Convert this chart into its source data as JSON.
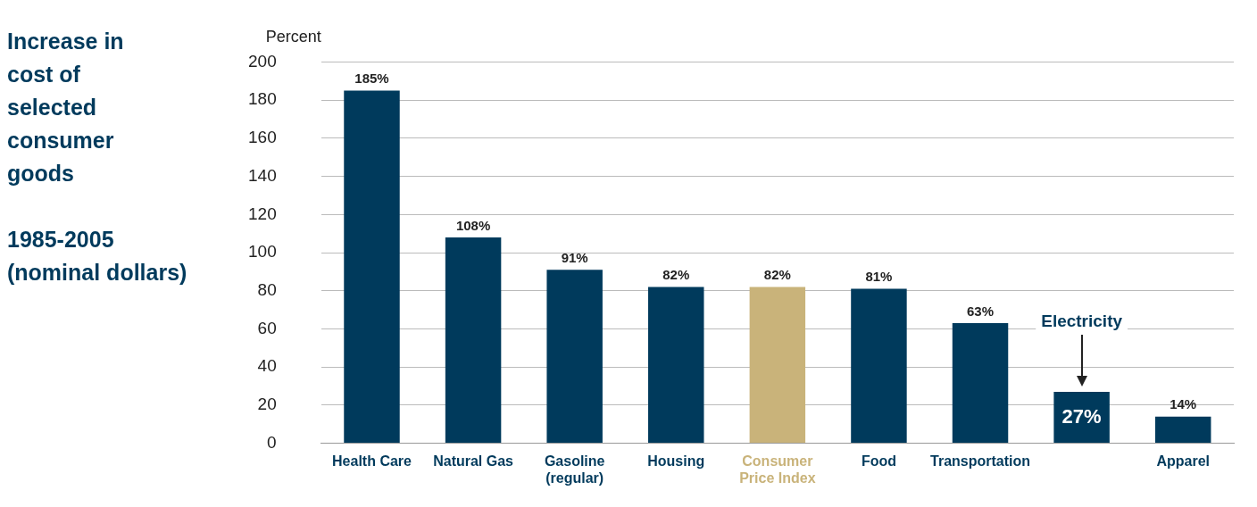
{
  "chart_data": {
    "type": "bar",
    "title": "Increase in cost of selected consumer goods",
    "subtitle": "1985-2005 (nominal dollars)",
    "ylabel": "Percent",
    "categories": [
      "Health Care",
      "Natural Gas",
      "Gasoline (regular)",
      "Housing",
      "Consumer Price Index",
      "Food",
      "Transportation",
      null,
      "Apparel"
    ],
    "values": [
      185,
      108,
      91,
      82,
      82,
      81,
      63,
      27,
      14
    ],
    "colors": [
      "#003a5c",
      "#003a5c",
      "#003a5c",
      "#003a5c",
      "#c9b37a",
      "#003a5c",
      "#003a5c",
      "#003a5c",
      "#003a5c"
    ],
    "value_labels": [
      "185%",
      "108%",
      "91%",
      "82%",
      "82%",
      "81%",
      "63%",
      "27%",
      "14%"
    ],
    "annotations": [
      "Electricity"
    ],
    "ylim": [
      0,
      200
    ],
    "yticks": [
      0,
      20,
      40,
      60,
      80,
      100,
      120,
      140,
      160,
      180,
      200
    ],
    "grid": "y",
    "legend": false
  }
}
